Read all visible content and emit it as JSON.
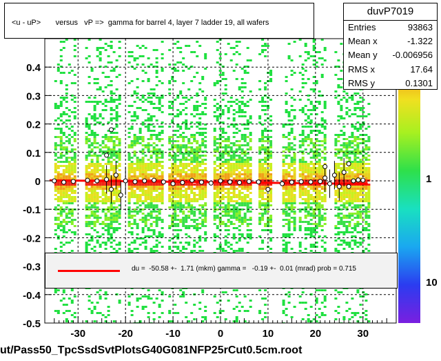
{
  "title": "<u - uP>       versus   vP =>  gamma for barrel 4, layer 7 ladder 19, all wafers",
  "stats": {
    "name": "duvP7019",
    "rows": [
      {
        "label": "Entries",
        "value": "93863"
      },
      {
        "label": "Mean x",
        "value": "-1.322"
      },
      {
        "label": "Mean y",
        "value": "-0.006956"
      },
      {
        "label": "RMS x",
        "value": "17.64"
      },
      {
        "label": "RMS y",
        "value": "0.1301"
      }
    ]
  },
  "fit_legend": "du =  -50.58 +-  1.71 (mkm) gamma =   -0.19 +-  0.01 (mrad) prob = 0.715",
  "file_label": "ut/Pass50_TpcSsdSvtPlotsG40G081NFP25rCut0.5cm.root",
  "colors": {
    "fit_line": "#ff0000",
    "profile_marker": "#000000"
  },
  "chart_data": {
    "type": "heatmap",
    "title": "<u - uP>       versus   vP =>  gamma for barrel 4, layer 7 ladder 19, all wafers",
    "xlim": [
      -37,
      37
    ],
    "ylim": [
      -0.5,
      0.5
    ],
    "x_ticks": [
      -30,
      -20,
      -10,
      0,
      10,
      20,
      30
    ],
    "y_ticks": [
      -0.5,
      -0.4,
      -0.3,
      -0.2,
      -0.1,
      0,
      0.1,
      0.2,
      0.3,
      0.4
    ],
    "y_tick_labels": [
      "-0.5",
      "-0.4",
      "-0.3",
      "-0.2",
      "-0.1",
      "0",
      "0.1",
      "0.2",
      "0.3",
      "0.4"
    ],
    "grid": true,
    "colorbar": {
      "scale": "log",
      "labels": [
        "1",
        "10"
      ]
    },
    "filled_x_ranges": [
      [
        -35,
        -30.5
      ],
      [
        -28.5,
        -21.5
      ],
      [
        -19.5,
        -12.5
      ],
      [
        -11,
        -3
      ],
      [
        -1.5,
        6.5
      ],
      [
        8,
        10.5
      ],
      [
        13,
        15.5
      ],
      [
        16.5,
        22
      ],
      [
        24,
        31
      ]
    ],
    "fit": {
      "du_mkm": -50.58,
      "du_err": 1.71,
      "gamma_mrad": -0.19,
      "gamma_err": 0.01,
      "prob": 0.715
    },
    "profile": {
      "x": [
        -35,
        -33,
        -31,
        -28,
        -26,
        -24,
        -23,
        -22,
        -21,
        -20,
        -18,
        -16,
        -14,
        -12,
        -10,
        -8,
        -6,
        -4,
        -2,
        0,
        2,
        4,
        6,
        8,
        10,
        13,
        15,
        17,
        19,
        21,
        22,
        23,
        24,
        25,
        26,
        27,
        28,
        29,
        30
      ],
      "y": [
        0.0,
        -0.005,
        -0.002,
        0.002,
        0.0,
        0.005,
        -0.03,
        0.02,
        -0.05,
        0.0,
        -0.003,
        0.0,
        0.002,
        -0.004,
        -0.01,
        -0.006,
        0.002,
        -0.005,
        -0.008,
        0.0,
        -0.004,
        -0.006,
        -0.002,
        -0.004,
        -0.03,
        -0.01,
        -0.005,
        -0.003,
        -0.004,
        -0.002,
        0.01,
        -0.01,
        0.02,
        -0.02,
        0.03,
        -0.02,
        0.0,
        0.003,
        0.002
      ]
    },
    "outlier_points": [
      {
        "x": -23,
        "y": 0.18
      },
      {
        "x": -24,
        "y": 0.09
      },
      {
        "x": 22,
        "y": 0.05
      },
      {
        "x": 27,
        "y": 0.06
      }
    ]
  }
}
